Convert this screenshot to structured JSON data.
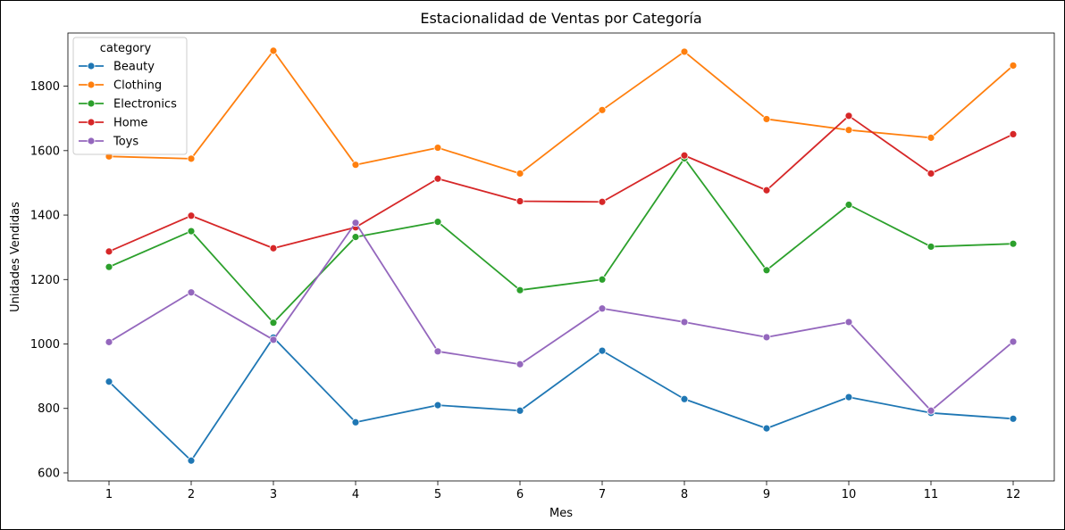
{
  "chart_data": {
    "type": "line",
    "title": "Estacionalidad de Ventas por Categoría",
    "xlabel": "Mes",
    "ylabel": "Unidades Vendidas",
    "x": [
      1,
      2,
      3,
      4,
      5,
      6,
      7,
      8,
      9,
      10,
      11,
      12
    ],
    "xlim": [
      0.5,
      12.5
    ],
    "ylim": [
      575,
      1965
    ],
    "yticks": [
      600,
      800,
      1000,
      1200,
      1400,
      1600,
      1800
    ],
    "grid": false,
    "legend": {
      "title": "category",
      "placement": "top-left"
    },
    "series": [
      {
        "name": "Beauty",
        "color": "#1f77b4",
        "values": [
          883,
          638,
          1020,
          757,
          810,
          793,
          979,
          829,
          738,
          835,
          786,
          768
        ]
      },
      {
        "name": "Clothing",
        "color": "#ff7f0e",
        "values": [
          1582,
          1575,
          1910,
          1556,
          1609,
          1529,
          1726,
          1907,
          1698,
          1664,
          1640,
          1864
        ]
      },
      {
        "name": "Electronics",
        "color": "#2ca02c",
        "values": [
          1239,
          1350,
          1066,
          1332,
          1379,
          1167,
          1200,
          1576,
          1229,
          1432,
          1302,
          1311
        ]
      },
      {
        "name": "Home",
        "color": "#d62728",
        "values": [
          1287,
          1398,
          1297,
          1362,
          1513,
          1443,
          1441,
          1585,
          1477,
          1708,
          1529,
          1651
        ]
      },
      {
        "name": "Toys",
        "color": "#9467bd",
        "values": [
          1006,
          1160,
          1013,
          1376,
          977,
          937,
          1110,
          1068,
          1021,
          1068,
          793,
          1007
        ]
      }
    ]
  }
}
